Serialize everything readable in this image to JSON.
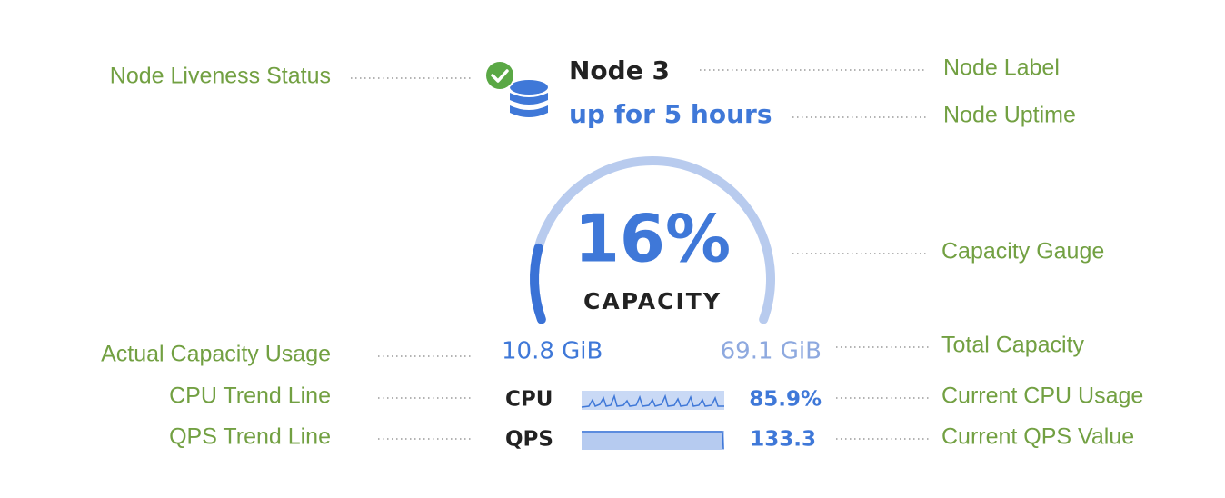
{
  "node": {
    "name": "Node 3",
    "uptime": "up for 5 hours"
  },
  "gauge": {
    "value": 16,
    "label": "16%",
    "caption": "CAPACITY"
  },
  "capacity": {
    "used": "10.8 GiB",
    "total": "69.1 GiB"
  },
  "metrics": [
    {
      "name": "CPU",
      "value": "85.9%"
    },
    {
      "name": "QPS",
      "value": "133.3"
    }
  ],
  "annotations": {
    "left": [
      "Node Liveness Status",
      "Actual Capacity Usage",
      "CPU Trend Line",
      "QPS Trend Line"
    ],
    "right": [
      "Node Label",
      "Node Uptime",
      "Capacity Gauge",
      "Total Capacity",
      "Current CPU Usage",
      "Current QPS Value"
    ]
  }
}
